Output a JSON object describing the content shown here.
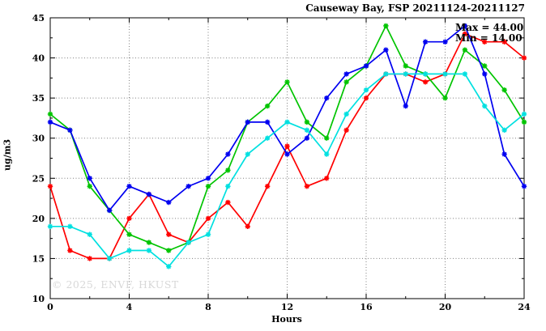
{
  "title": "Causeway Bay, FSP 20211124-20211127",
  "annotations": {
    "max_label": "Max = 44.00",
    "min_label": "Min = 14.00"
  },
  "watermark": "© 2025, ENVF, HKUST",
  "chart_data": {
    "type": "line",
    "title": "Causeway Bay, FSP 20211124-20211127",
    "xlabel": "Hours",
    "ylabel": "ug/m3",
    "xlim": [
      0,
      24
    ],
    "ylim": [
      10,
      45
    ],
    "x_ticks": [
      0,
      4,
      8,
      12,
      16,
      20,
      24
    ],
    "x_minor_ticks": [
      2,
      6,
      10,
      14,
      18,
      22
    ],
    "y_ticks": [
      10,
      15,
      20,
      25,
      30,
      35,
      40,
      45
    ],
    "y_minor_ticks": [
      12.5,
      17.5,
      22.5,
      27.5,
      32.5,
      37.5,
      42.5
    ],
    "grid": true,
    "legend": false,
    "max": 44.0,
    "min": 14.0,
    "x": [
      0,
      1,
      2,
      3,
      4,
      5,
      6,
      7,
      8,
      9,
      10,
      11,
      12,
      13,
      14,
      15,
      16,
      17,
      18,
      19,
      20,
      21,
      22,
      23,
      24
    ],
    "series": [
      {
        "name": "red-series",
        "color": "#ff0000",
        "values": [
          24,
          16,
          15,
          15,
          20,
          23,
          18,
          17,
          20,
          22,
          19,
          24,
          29,
          24,
          25,
          31,
          35,
          38,
          38,
          37,
          38,
          43,
          42,
          42,
          40
        ]
      },
      {
        "name": "green-series",
        "color": "#00c400",
        "values": [
          33,
          31,
          24,
          21,
          18,
          17,
          16,
          17,
          24,
          26,
          32,
          34,
          37,
          32,
          30,
          37,
          39,
          44,
          39,
          38,
          35,
          41,
          39,
          36,
          32
        ]
      },
      {
        "name": "blue-series",
        "color": "#0000f0",
        "values": [
          32,
          31,
          25,
          21,
          24,
          23,
          22,
          24,
          25,
          28,
          32,
          32,
          28,
          30,
          35,
          38,
          39,
          41,
          34,
          42,
          42,
          44,
          38,
          28,
          24
        ]
      },
      {
        "name": "cyan-series",
        "color": "#00e0e0",
        "values": [
          19,
          19,
          18,
          15,
          16,
          16,
          14,
          17,
          18,
          24,
          28,
          30,
          32,
          31,
          28,
          33,
          36,
          38,
          38,
          38,
          38,
          38,
          34,
          31,
          33
        ]
      }
    ]
  }
}
